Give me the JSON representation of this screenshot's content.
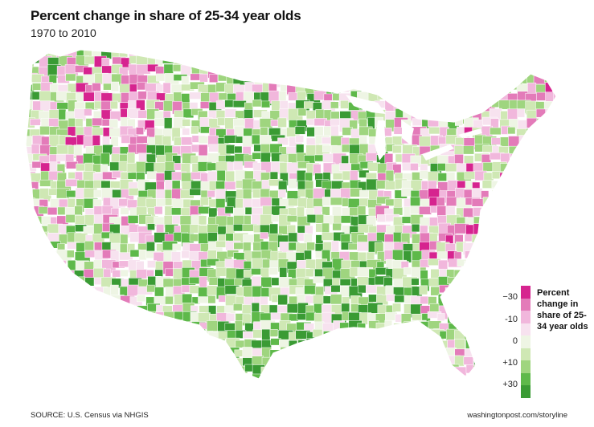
{
  "header": {
    "title": "Percent change in share of 25-34 year olds",
    "subtitle": "1970 to 2010"
  },
  "legend": {
    "title": "Percent change in share of 25-34 year olds",
    "ticks": [
      "−30",
      "-10",
      "0",
      "+10",
      "+30"
    ],
    "colors": [
      "#d6248f",
      "#e37bb9",
      "#f1b7dc",
      "#f7e2ef",
      "#eef5e4",
      "#cfe8b4",
      "#9fd57f",
      "#5eb94a",
      "#3a9b34"
    ]
  },
  "map": {
    "palette": {
      "strong_decrease": "#d6248f",
      "decrease": "#e37bb9",
      "slight_decrease": "#f1b7dc",
      "neutral_pink": "#f7e2ef",
      "neutral_green": "#eef5e4",
      "slight_increase": "#cfe8b4",
      "increase": "#9fd57f",
      "strong_increase": "#5eb94a",
      "very_strong_increase": "#3a9b34"
    }
  },
  "footer": {
    "source": "SOURCE: U.S. Census via NHGIS",
    "credit": "washingtonpost.com/storyline"
  }
}
